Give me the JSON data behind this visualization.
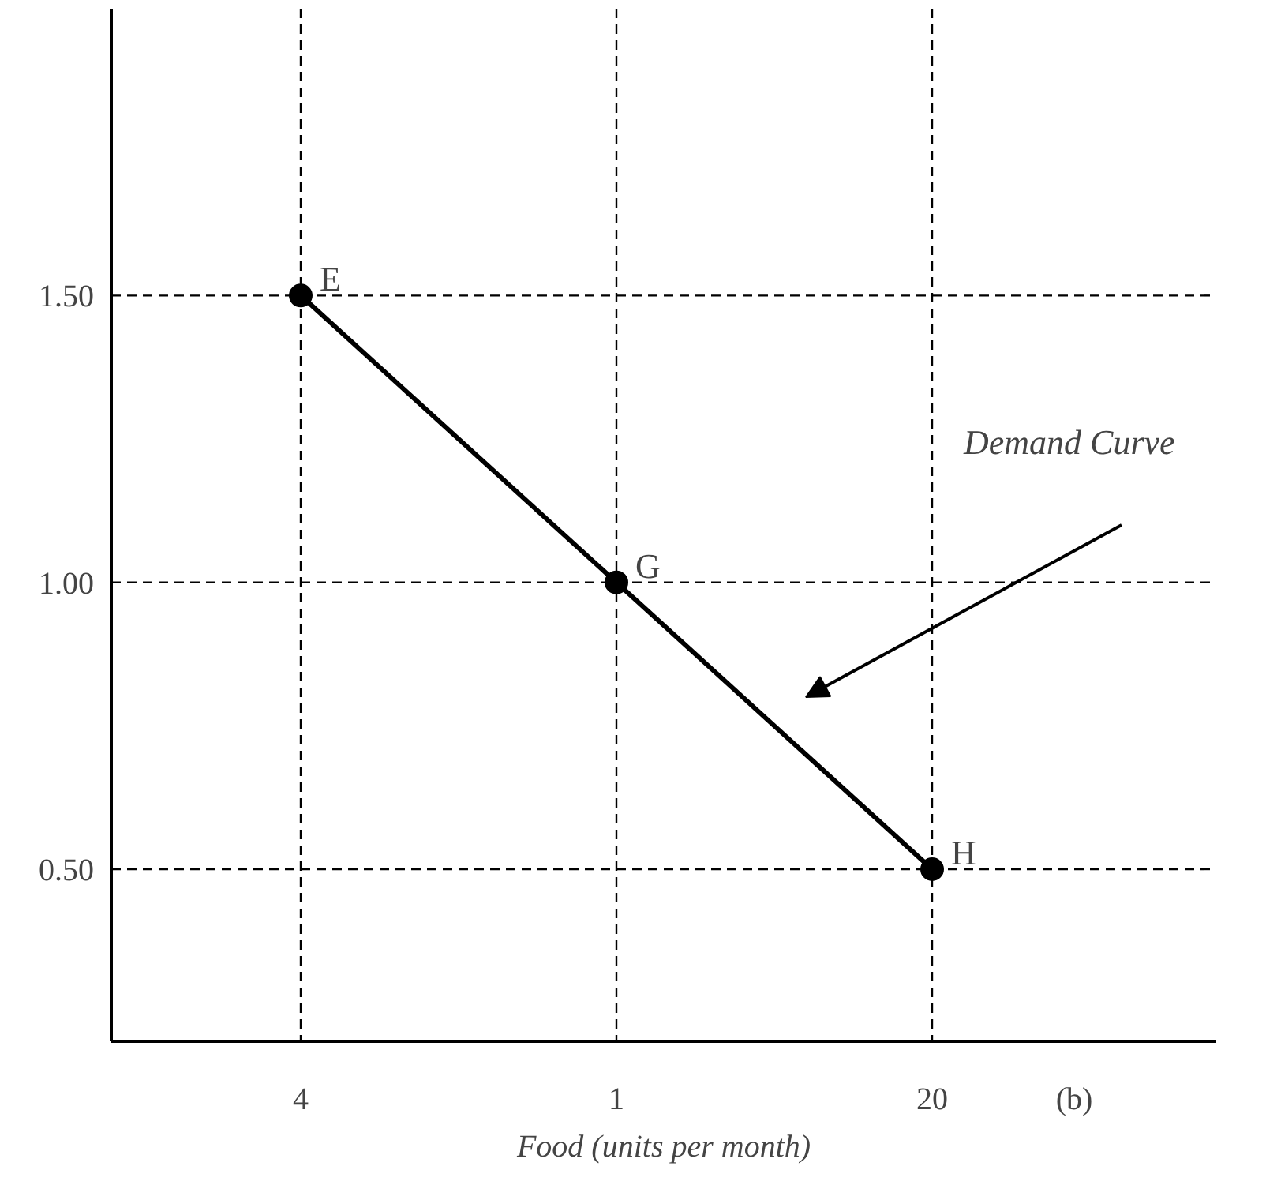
{
  "chart_data": {
    "type": "line",
    "xlabel": "Food (units per month)",
    "categories": [
      "4",
      "1",
      "20"
    ],
    "series": [
      {
        "color": "#000000",
        "values": [
          1.5,
          1.0,
          0.5
        ]
      }
    ],
    "marker": "circle",
    "ylim": [
      0.2,
      2.0
    ],
    "yticks": [
      {
        "value": 0.5,
        "label": "0.50"
      },
      {
        "value": 1.0,
        "label": "1.00"
      },
      {
        "value": 1.5,
        "label": "1.50"
      }
    ],
    "grid": false,
    "ref_lines": [
      {
        "axis": "x",
        "value": "4",
        "line_style": "dashed"
      },
      {
        "axis": "x",
        "value": "1",
        "line_style": "dashed"
      },
      {
        "axis": "x",
        "value": "20",
        "line_style": "dashed"
      },
      {
        "axis": "y",
        "value": 1.5,
        "line_style": "dashed"
      },
      {
        "axis": "y",
        "value": 1.0,
        "line_style": "dashed"
      },
      {
        "axis": "y",
        "value": 0.5,
        "line_style": "dashed"
      }
    ],
    "annotations": [
      {
        "text": "E",
        "x": "4",
        "y": 1.5
      },
      {
        "text": "G",
        "x": "1",
        "y": 1.0
      },
      {
        "text": "H",
        "x": "20",
        "y": 0.5
      },
      "Demand Curve",
      "(b)"
    ]
  }
}
